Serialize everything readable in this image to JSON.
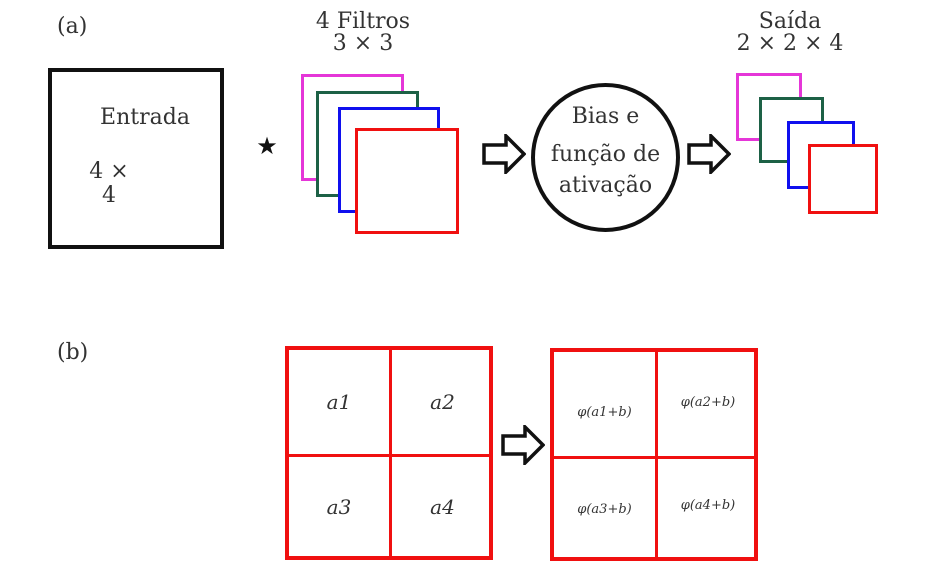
{
  "panel_a": {
    "label": "(a)",
    "input": {
      "title": "Entrada",
      "size": "4 × 4"
    },
    "operator": "★",
    "filters": {
      "title": "4 Filtros",
      "size": "3 × 3"
    },
    "process": {
      "line1": "Bias e",
      "line2": "função de",
      "line3": "ativação"
    },
    "output": {
      "title": "Saída",
      "size": "2 × 2 × 4"
    }
  },
  "panel_b": {
    "label": "(b)",
    "input_cells": [
      "a1",
      "a2",
      "a3",
      "a4"
    ],
    "output_cells": [
      "φ(a1+b)",
      "φ(a2+b)",
      "φ(a3+b)",
      "φ(a4+b)"
    ]
  },
  "colors": {
    "magenta": "#e536d8",
    "green": "#1d6146",
    "blue": "#1010ee",
    "red": "#f01010",
    "black": "#111111"
  }
}
